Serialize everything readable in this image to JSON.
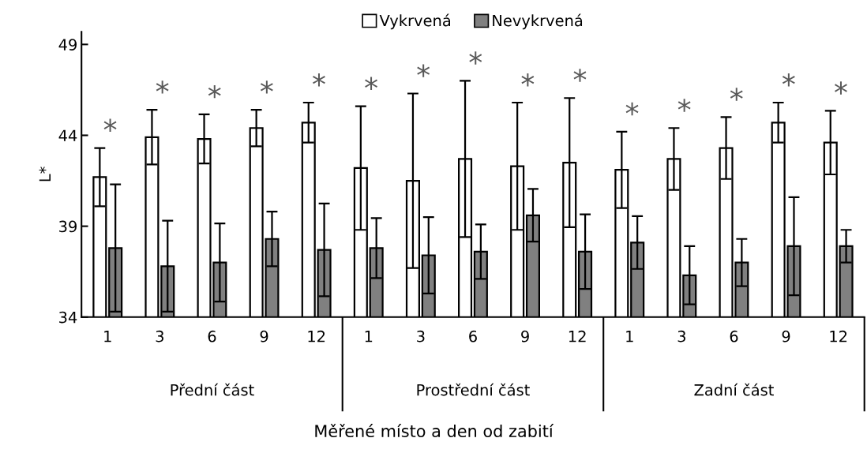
{
  "chart_data": {
    "type": "bar",
    "ylabel": "L*",
    "categories": [
      "1",
      "3",
      "6",
      "9",
      "12",
      "1",
      "3",
      "6",
      "9",
      "12",
      "1",
      "3",
      "6",
      "9",
      "12"
    ],
    "series": [
      {
        "name": "Vykrvená",
        "color": "#ffffff",
        "values": [
          41.7,
          43.9,
          43.8,
          44.4,
          44.7,
          42.2,
          41.5,
          42.7,
          42.3,
          42.5,
          42.1,
          42.7,
          43.3,
          44.7,
          43.6
        ],
        "errors": [
          1.6,
          1.5,
          1.35,
          1.0,
          1.1,
          3.4,
          4.8,
          4.3,
          3.5,
          3.55,
          2.1,
          1.7,
          1.7,
          1.1,
          1.75
        ]
      },
      {
        "name": "Nevykrvená",
        "color": "#808080",
        "values": [
          37.8,
          36.8,
          37.0,
          38.3,
          37.7,
          37.8,
          37.4,
          37.6,
          39.6,
          37.6,
          38.1,
          36.3,
          37.0,
          37.9,
          37.9
        ],
        "errors": [
          3.5,
          2.5,
          2.15,
          1.5,
          2.55,
          1.65,
          2.1,
          1.5,
          1.45,
          2.05,
          1.45,
          1.6,
          1.3,
          2.7,
          0.9
        ]
      }
    ],
    "annotations": [
      "*",
      "*",
      "*",
      "*",
      "*",
      "*",
      "*",
      "*",
      "*",
      "*",
      "*",
      "*",
      "*",
      "*",
      "*",
      "Přední část",
      "Prostřední část",
      "Zadní část",
      "Měřené místo a den od zabití"
    ],
    "ylim": [
      34,
      49.7
    ],
    "yticks": [
      34,
      39,
      44,
      49
    ],
    "grid": false,
    "legend": "top"
  }
}
